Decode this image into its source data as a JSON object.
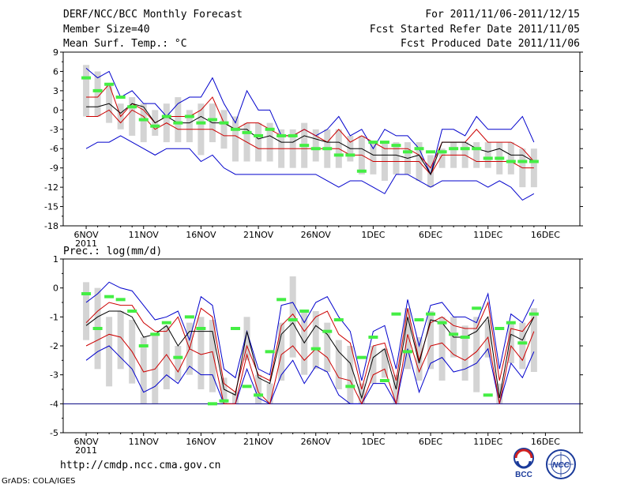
{
  "header": {
    "title": "DERF/NCC/BCC Monthly Forecast",
    "member_size": "Member Size=40",
    "variable": "Mean Surf. Temp.: °C",
    "period": "For 2011/11/06-2011/12/15",
    "refer_date": "Fcst Started Refer Date 2011/11/05",
    "produced_date": "Fcst Produced Date 2011/11/06"
  },
  "footer": {
    "url": "http://cmdp.ncc.cma.gov.cn",
    "grads": "GrADS: COLA/IGES",
    "logo_bcc": "BCC",
    "logo_ncc": "NCC"
  },
  "colors": {
    "envelope": "#0000cc",
    "inner": "#cc0000",
    "median": "#000000",
    "bar": "#d4d4d4",
    "obs": "#44ee44",
    "baseline": "#000080"
  },
  "chart_data": [
    {
      "type": "line",
      "title": "Mean Surf. Temp.: °C",
      "ylim": [
        -18,
        9
      ],
      "yticks": [
        "9",
        "6",
        "3",
        "0",
        "-3",
        "-6",
        "-9",
        "-12",
        "-15",
        "-18"
      ],
      "xticks": [
        "6NOV",
        "11NOV",
        "16NOV",
        "21NOV",
        "26NOV",
        "1DEC",
        "6DEC",
        "11DEC",
        "16DEC"
      ],
      "xsub": "2011",
      "day_start": 6,
      "days": 40,
      "series": [
        {
          "name": "max",
          "values": [
            6.5,
            5,
            6,
            2,
            3,
            1,
            1,
            -1,
            1,
            2,
            2,
            5,
            1,
            -2,
            3,
            0,
            0,
            -4,
            -4,
            -3,
            -4,
            -3,
            -1,
            -4,
            -3,
            -6,
            -3,
            -4,
            -4,
            -6,
            -10,
            -3,
            -3,
            -4,
            -1,
            -3,
            -3,
            -3,
            -1,
            -5
          ]
        },
        {
          "name": "upper",
          "values": [
            2,
            2,
            4,
            -1,
            1,
            0,
            -2,
            -1,
            -1,
            -1,
            0,
            2,
            -2,
            -3,
            -2,
            -2,
            -3,
            -4,
            -4,
            -3,
            -4,
            -5,
            -3,
            -5,
            -4,
            -5,
            -6,
            -6,
            -6,
            -7,
            -9,
            -5,
            -5,
            -5,
            -3,
            -5,
            -5,
            -5,
            -6,
            -8
          ]
        },
        {
          "name": "median",
          "values": [
            0.5,
            0.5,
            1,
            -0.5,
            1,
            0.5,
            -2,
            -1,
            -2,
            -2,
            -1,
            -2,
            -2,
            -3,
            -3,
            -4.5,
            -4,
            -5,
            -5,
            -4,
            -4.5,
            -5,
            -5,
            -6,
            -6,
            -7,
            -7,
            -7,
            -7.5,
            -7,
            -10,
            -5,
            -5,
            -5,
            -6,
            -6.5,
            -6,
            -7,
            -7,
            -8
          ]
        },
        {
          "name": "lower",
          "values": [
            -1,
            -1,
            0,
            -2,
            0,
            -1,
            -3,
            -2,
            -3,
            -3,
            -3,
            -3,
            -4,
            -4,
            -5,
            -6,
            -6,
            -6,
            -6,
            -6,
            -6,
            -6,
            -6,
            -7,
            -7,
            -8,
            -8,
            -8,
            -8,
            -8,
            -10,
            -7,
            -7,
            -7,
            -8,
            -8,
            -8,
            -8,
            -9,
            -9
          ]
        },
        {
          "name": "min",
          "values": [
            -6,
            -5,
            -5,
            -4,
            -5,
            -6,
            -7,
            -6,
            -6,
            -6,
            -8,
            -7,
            -9,
            -10,
            -10,
            -10,
            -10,
            -10,
            -10,
            -10,
            -10,
            -11,
            -12,
            -11,
            -11,
            -12,
            -13,
            -10,
            -10,
            -11,
            -12,
            -11,
            -11,
            -11,
            -11,
            -12,
            -11,
            -12,
            -14,
            -13
          ]
        },
        {
          "name": "bar_top",
          "values": [
            7,
            6,
            4,
            1,
            2,
            1,
            0,
            1,
            2,
            0,
            1,
            1,
            0,
            -1,
            -2,
            -2,
            -2,
            -3,
            -3,
            -2,
            -3,
            -3,
            -3,
            -4,
            -4,
            -5,
            -5,
            -5,
            -5,
            -5,
            -7,
            -6,
            -5,
            -5,
            -5,
            -5,
            -5,
            -5,
            -6,
            -6
          ]
        },
        {
          "name": "bar_bottom",
          "values": [
            -1,
            -1,
            -2,
            -3,
            -4,
            -5,
            -4,
            -5,
            -5,
            -5,
            -7,
            -5,
            -6,
            -8,
            -8,
            -8,
            -8,
            -9,
            -9,
            -9,
            -8,
            -9,
            -9,
            -8,
            -10,
            -10,
            -11,
            -10,
            -10,
            -11,
            -12,
            -9,
            -9,
            -9,
            -9,
            -9,
            -10,
            -10,
            -12,
            -12
          ]
        },
        {
          "name": "observed",
          "values": [
            5,
            3,
            4,
            2,
            0.5,
            -1.5,
            -2.5,
            -1,
            -2,
            -1,
            -2,
            -1.5,
            -2,
            -3,
            -3.5,
            -4,
            -3,
            -4,
            -4,
            -5.5,
            -6,
            -6,
            -7,
            -7,
            -9.5,
            -5,
            -5,
            -5.5,
            -6.5,
            -6,
            -6.5,
            -6.5,
            -6,
            -6,
            -6,
            -7.5,
            -7.5,
            -8,
            -8,
            -8
          ]
        }
      ]
    },
    {
      "type": "line",
      "title": "Prec.: log(mm/d)",
      "ylim": [
        -5,
        1
      ],
      "yticks": [
        "1",
        "0",
        "-1",
        "-2",
        "-3",
        "-4",
        "-5"
      ],
      "xticks": [
        "6NOV",
        "11NOV",
        "16NOV",
        "21NOV",
        "26NOV",
        "1DEC",
        "6DEC",
        "11DEC",
        "16DEC"
      ],
      "xsub": "2011",
      "day_start": 6,
      "days": 40,
      "baseline": -4,
      "series": [
        {
          "name": "max",
          "values": [
            -0.5,
            -0.2,
            0.2,
            0,
            -0.1,
            -0.6,
            -1.1,
            -1,
            -0.8,
            -1.8,
            -0.3,
            -0.6,
            -2.8,
            -3.1,
            -1.5,
            -2.8,
            -3,
            -0.6,
            -0.5,
            -1.2,
            -0.5,
            -0.3,
            -1,
            -1.5,
            -3.2,
            -1.5,
            -1.3,
            -2.8,
            -0.4,
            -2,
            -0.6,
            -0.5,
            -1,
            -1,
            -1.2,
            -0.2,
            -2.8,
            -0.9,
            -1.2,
            -0.4
          ]
        },
        {
          "name": "upper",
          "values": [
            -1.2,
            -0.8,
            -0.5,
            -0.6,
            -0.6,
            -1.2,
            -1.5,
            -1.5,
            -1,
            -2.1,
            -0.7,
            -1,
            -3.3,
            -3.6,
            -2,
            -3,
            -3.2,
            -1.3,
            -0.9,
            -1.5,
            -1,
            -0.8,
            -1.6,
            -1.9,
            -3.5,
            -2,
            -1.9,
            -3.2,
            -0.7,
            -2.5,
            -1.2,
            -1,
            -1.3,
            -1.4,
            -1.4,
            -0.5,
            -3.2,
            -1.4,
            -1.5,
            -1
          ]
        },
        {
          "name": "median",
          "values": [
            -1.3,
            -1,
            -0.8,
            -0.8,
            -1,
            -1.7,
            -1.6,
            -1.3,
            -2,
            -1.5,
            -1.5,
            -1.5,
            -3.5,
            -3.7,
            -1.5,
            -3.1,
            -3.3,
            -1.6,
            -1.2,
            -1.9,
            -1.3,
            -1.6,
            -2.2,
            -2.6,
            -3.8,
            -2.4,
            -2.1,
            -3.5,
            -1,
            -2.6,
            -1.1,
            -1.2,
            -1.7,
            -1.7,
            -1.5,
            -1,
            -3.8,
            -1.6,
            -1.8,
            -1
          ]
        },
        {
          "name": "lower",
          "values": [
            -2,
            -1.8,
            -1.6,
            -1.7,
            -2.2,
            -2.9,
            -2.8,
            -2.3,
            -2.9,
            -2.1,
            -2.3,
            -2.2,
            -4,
            -4,
            -2.3,
            -3.6,
            -4,
            -2.3,
            -2,
            -2.5,
            -2.1,
            -2.4,
            -3.1,
            -3.2,
            -4,
            -3,
            -2.8,
            -4,
            -1.6,
            -2.9,
            -2,
            -1.9,
            -2.3,
            -2.5,
            -2.2,
            -1.7,
            -4,
            -2,
            -2.5,
            -1.5
          ]
        },
        {
          "name": "min",
          "values": [
            -2.5,
            -2.2,
            -2,
            -2.4,
            -2.8,
            -3.6,
            -3.4,
            -3,
            -3.3,
            -2.7,
            -3,
            -3,
            -4,
            -4,
            -2.8,
            -3.8,
            -4,
            -3,
            -2.5,
            -3.3,
            -2.7,
            -2.9,
            -3.7,
            -4,
            -4,
            -3.3,
            -3.3,
            -4,
            -2.1,
            -3.6,
            -2.6,
            -2.4,
            -2.9,
            -2.8,
            -2.6,
            -2.1,
            -4,
            -2.6,
            -3.1,
            -2.2
          ]
        },
        {
          "name": "bar_top",
          "values": [
            0.2,
            0,
            -1,
            -0.8,
            -1.1,
            -1.7,
            -1.6,
            -1.3,
            -2,
            -1.2,
            -1,
            -1.1,
            -3.1,
            -3.6,
            -1,
            -3,
            -3.3,
            -1.2,
            0.4,
            -0.8,
            -0.8,
            -1.2,
            -1.8,
            -2,
            -3.3,
            -2,
            -2.1,
            -3,
            -0.7,
            -1.7,
            -0.8,
            -1,
            -1,
            -1.3,
            -1,
            -1.1,
            -3.3,
            -1.2,
            -1.2,
            -0.7
          ]
        },
        {
          "name": "bar_bottom",
          "values": [
            -1.8,
            -2.8,
            -3.4,
            -2.8,
            -3.3,
            -4,
            -4,
            -3.5,
            -3.2,
            -3,
            -3.5,
            -3.6,
            -4,
            -4,
            -2.5,
            -4,
            -4,
            -3.2,
            -2.4,
            -3,
            -2.8,
            -2.9,
            -3.5,
            -4,
            -4,
            -3.3,
            -3.1,
            -4,
            -2.8,
            -3.2,
            -2.8,
            -3.2,
            -2.4,
            -3.2,
            -3.6,
            -2.4,
            -4,
            -2.6,
            -2.8,
            -2.9
          ]
        },
        {
          "name": "observed",
          "values": [
            -0.2,
            -1.4,
            -0.3,
            -0.4,
            -0.8,
            -2,
            -1.6,
            -1.2,
            -2.4,
            -1,
            -1.4,
            -4,
            -3.9,
            -1.4,
            -3.4,
            -3.7,
            -2.2,
            -0.4,
            -1.1,
            -0.8,
            -2.1,
            -1.5,
            -1.1,
            -3.4,
            -2.4,
            -1.7,
            -3.2,
            -0.9,
            -2.2,
            -1.1,
            -0.9,
            -1.2,
            -1.6,
            -1.7,
            -0.7,
            -3.7,
            -1.4,
            -1.2,
            -1.9,
            -0.9
          ]
        }
      ]
    }
  ]
}
